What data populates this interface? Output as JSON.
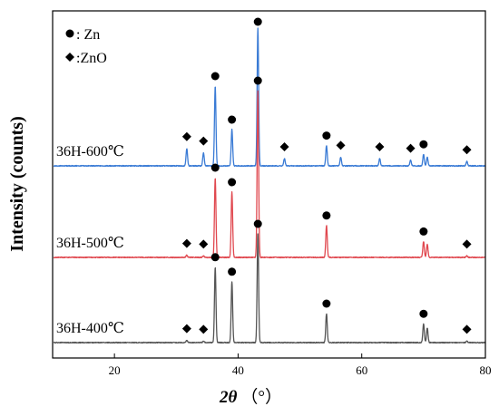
{
  "chart_data": {
    "type": "line",
    "xlabel_symbol": "2θ",
    "xlabel_unit": "（°）",
    "ylabel": "Intensity (counts)",
    "xlim": [
      10,
      80
    ],
    "x_ticks": [
      20,
      40,
      60,
      80
    ],
    "y_ticks_shown": false,
    "legend": [
      {
        "marker": "circle",
        "label": ": Zn"
      },
      {
        "marker": "diamond",
        "label": ":ZnO"
      }
    ],
    "series": [
      {
        "name": "36H-600℃",
        "color": "#3a7bd5",
        "baseline": 0.0,
        "peaks": [
          {
            "x": 31.7,
            "y": 0.12
          },
          {
            "x": 34.4,
            "y": 0.09
          },
          {
            "x": 36.3,
            "y": 0.55
          },
          {
            "x": 39.0,
            "y": 0.25
          },
          {
            "x": 43.2,
            "y": 0.95
          },
          {
            "x": 47.5,
            "y": 0.05
          },
          {
            "x": 54.3,
            "y": 0.14
          },
          {
            "x": 56.6,
            "y": 0.06
          },
          {
            "x": 62.9,
            "y": 0.05
          },
          {
            "x": 67.9,
            "y": 0.04
          },
          {
            "x": 70.0,
            "y": 0.08
          },
          {
            "x": 70.6,
            "y": 0.06
          },
          {
            "x": 77.0,
            "y": 0.03
          }
        ],
        "zn_markers": [
          36.3,
          39.0,
          43.2,
          54.3,
          70.0
        ],
        "zno_markers": [
          31.7,
          34.4,
          47.5,
          56.6,
          62.9,
          67.9,
          77.0
        ]
      },
      {
        "name": "36H-500℃",
        "color": "#e0484f",
        "baseline": 0.0,
        "peaks": [
          {
            "x": 31.7,
            "y": 0.015
          },
          {
            "x": 34.4,
            "y": 0.01
          },
          {
            "x": 36.3,
            "y": 0.55
          },
          {
            "x": 39.0,
            "y": 0.45
          },
          {
            "x": 43.2,
            "y": 1.15
          },
          {
            "x": 54.3,
            "y": 0.22
          },
          {
            "x": 70.0,
            "y": 0.11
          },
          {
            "x": 70.6,
            "y": 0.09
          },
          {
            "x": 77.0,
            "y": 0.01
          }
        ],
        "zn_markers": [
          36.3,
          39.0,
          43.2,
          54.3,
          70.0
        ],
        "zno_markers": [
          31.7,
          34.4,
          77.0
        ]
      },
      {
        "name": "36H-400℃",
        "color": "#555555",
        "baseline": 0.0,
        "peaks": [
          {
            "x": 31.7,
            "y": 0.015
          },
          {
            "x": 34.4,
            "y": 0.01
          },
          {
            "x": 36.3,
            "y": 0.52
          },
          {
            "x": 39.0,
            "y": 0.42
          },
          {
            "x": 43.2,
            "y": 0.75
          },
          {
            "x": 54.3,
            "y": 0.2
          },
          {
            "x": 70.0,
            "y": 0.13
          },
          {
            "x": 70.6,
            "y": 0.1
          },
          {
            "x": 77.0,
            "y": 0.01
          }
        ],
        "zn_markers": [
          36.3,
          39.0,
          43.2,
          54.3,
          70.0
        ],
        "zno_markers": [
          31.7,
          34.4,
          77.0
        ]
      }
    ]
  }
}
